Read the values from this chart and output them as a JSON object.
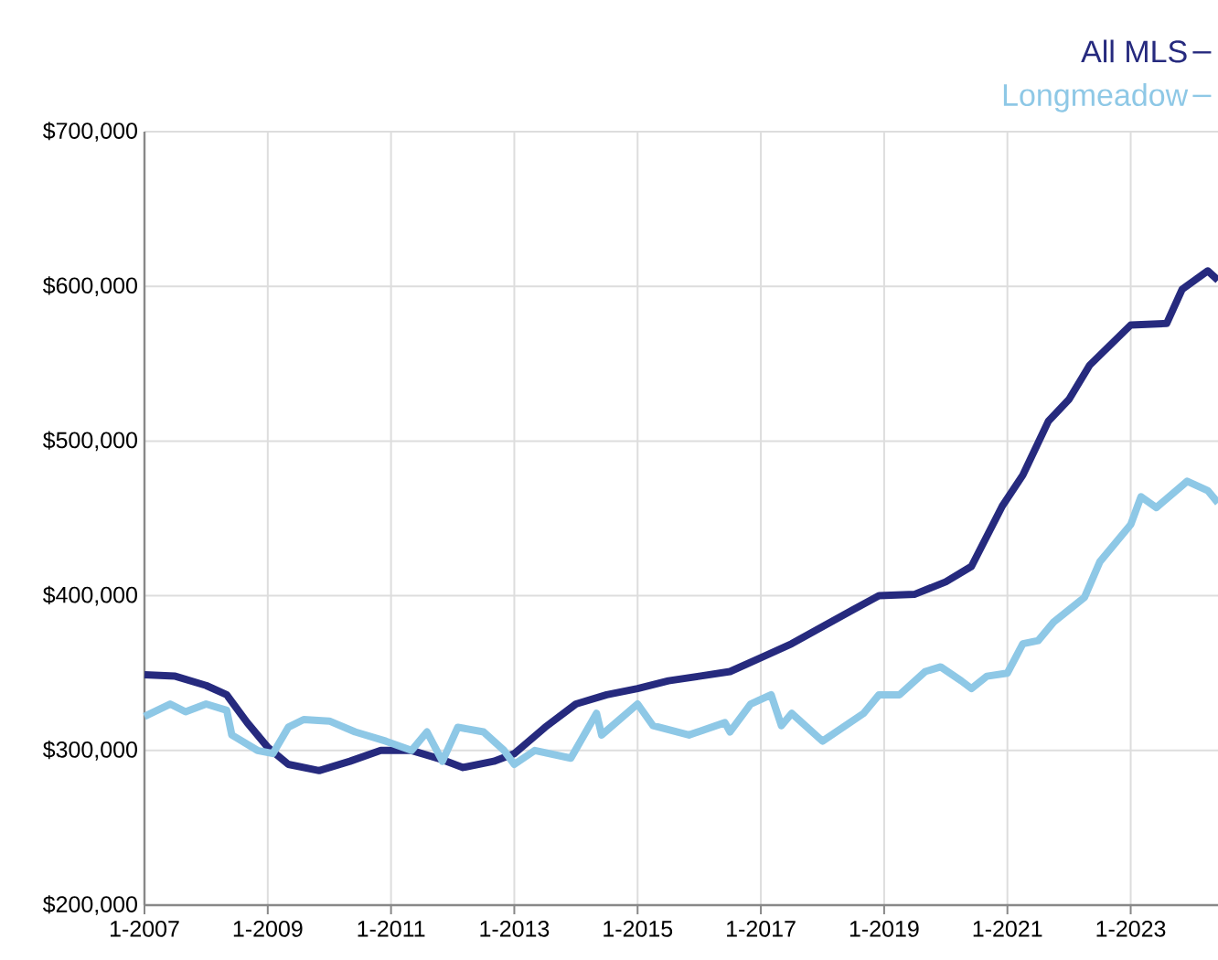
{
  "chart_data": {
    "type": "line",
    "xlim": [
      "2007-01",
      "2024-06"
    ],
    "xticks": [
      {
        "value": "2007-01",
        "label": "1-2007"
      },
      {
        "value": "2009-01",
        "label": "1-2009"
      },
      {
        "value": "2011-01",
        "label": "1-2011"
      },
      {
        "value": "2013-01",
        "label": "1-2013"
      },
      {
        "value": "2015-01",
        "label": "1-2015"
      },
      {
        "value": "2017-01",
        "label": "1-2017"
      },
      {
        "value": "2019-01",
        "label": "1-2019"
      },
      {
        "value": "2021-01",
        "label": "1-2021"
      },
      {
        "value": "2023-01",
        "label": "1-2023"
      }
    ],
    "ylim": [
      200000,
      700000
    ],
    "yticks": [
      {
        "value": 200000,
        "label": "$200,000"
      },
      {
        "value": 300000,
        "label": "$300,000"
      },
      {
        "value": 400000,
        "label": "$400,000"
      },
      {
        "value": 500000,
        "label": "$500,000"
      },
      {
        "value": 600000,
        "label": "$600,000"
      },
      {
        "value": 700000,
        "label": "$700,000"
      }
    ],
    "grid": true,
    "legend": "top right",
    "marker": "none",
    "line_style": "solid",
    "series": [
      {
        "name": "All MLS",
        "color": "#262a7e",
        "x": [
          "2007-01",
          "2007-07",
          "2008-01",
          "2008-05",
          "2008-09",
          "2009-01",
          "2009-05",
          "2009-11",
          "2010-05",
          "2010-11",
          "2011-05",
          "2011-11",
          "2012-03",
          "2012-09",
          "2013-01",
          "2013-07",
          "2014-01",
          "2014-07",
          "2015-01",
          "2015-07",
          "2016-01",
          "2016-07",
          "2017-01",
          "2017-07",
          "2018-01",
          "2018-07",
          "2018-12",
          "2019-07",
          "2020-01",
          "2020-06",
          "2020-12",
          "2021-04",
          "2021-09",
          "2022-01",
          "2022-05",
          "2023-01",
          "2023-08",
          "2023-11",
          "2024-04",
          "2024-06"
        ],
        "values": [
          349000,
          348000,
          342000,
          336000,
          318000,
          302000,
          291000,
          287000,
          293000,
          300000,
          300000,
          294000,
          289000,
          293000,
          298000,
          315000,
          330000,
          336000,
          340000,
          345000,
          348000,
          351000,
          360000,
          369000,
          380000,
          391000,
          400000,
          401000,
          409000,
          419000,
          458000,
          478000,
          513000,
          527000,
          549000,
          575000,
          576000,
          598000,
          610000,
          604000
        ]
      },
      {
        "name": "Longmeadow",
        "color": "#8ec8e6",
        "x": [
          "2007-01",
          "2007-06",
          "2007-09",
          "2008-01",
          "2008-05",
          "2008-06",
          "2008-11",
          "2009-02",
          "2009-05",
          "2009-08",
          "2010-01",
          "2010-06",
          "2010-12",
          "2011-05",
          "2011-08",
          "2011-11",
          "2012-02",
          "2012-07",
          "2012-11",
          "2013-01",
          "2013-05",
          "2013-12",
          "2014-05",
          "2014-06",
          "2015-01",
          "2015-04",
          "2015-11",
          "2016-06",
          "2016-07",
          "2016-11",
          "2017-03",
          "2017-05",
          "2017-07",
          "2018-01",
          "2018-09",
          "2018-12",
          "2019-04",
          "2019-09",
          "2019-12",
          "2020-04",
          "2020-06",
          "2020-09",
          "2021-01",
          "2021-04",
          "2021-07",
          "2021-10",
          "2022-04",
          "2022-07",
          "2022-10",
          "2023-01",
          "2023-03",
          "2023-06",
          "2023-12",
          "2024-04",
          "2024-06"
        ],
        "values": [
          322000,
          330000,
          325000,
          330000,
          326000,
          310000,
          300000,
          298000,
          315000,
          320000,
          319000,
          312000,
          306000,
          300000,
          312000,
          293000,
          315000,
          312000,
          300000,
          291000,
          300000,
          295000,
          324000,
          310000,
          330000,
          316000,
          310000,
          318000,
          312000,
          330000,
          336000,
          316000,
          324000,
          306000,
          324000,
          336000,
          336000,
          351000,
          354000,
          345000,
          340000,
          348000,
          350000,
          369000,
          371000,
          383000,
          399000,
          422000,
          434000,
          446000,
          464000,
          457000,
          474000,
          468000,
          460000
        ]
      }
    ]
  }
}
